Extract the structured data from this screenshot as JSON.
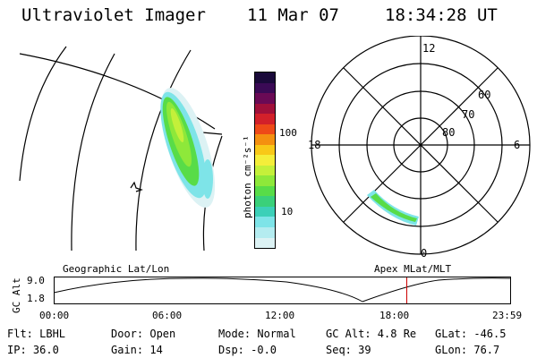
{
  "header": {
    "instrument": "Ultraviolet Imager",
    "date": "11 Mar 07",
    "time": "18:34:28 UT"
  },
  "colorbar": {
    "label": "photon cm⁻²s⁻¹",
    "scale": "log",
    "tick_labels": [
      "100",
      "10"
    ],
    "colors_top_to_bottom": [
      "#1a0a3a",
      "#3a0a55",
      "#6a0a55",
      "#a0103a",
      "#d2202a",
      "#ee4a18",
      "#f49010",
      "#f8c818",
      "#f4ee3a",
      "#c4f03a",
      "#8ee83a",
      "#58dc48",
      "#3ad07a",
      "#3cd0b8",
      "#7ee4e8",
      "#b4ecf0",
      "#dcf2f4"
    ]
  },
  "geo_panel": {
    "label": "Geographic Lat/Lon"
  },
  "polar_panel": {
    "label": "Apex MLat/MLT",
    "mlt_labels": [
      "12",
      "18",
      "6",
      "0"
    ],
    "mlat_labels": [
      "60",
      "70",
      "80"
    ]
  },
  "altitude_plot": {
    "ylabel": "GC Alt",
    "y_ticks": [
      "9.0",
      "1.8"
    ],
    "x_ticks": [
      "00:00",
      "06:00",
      "12:00",
      "18:00",
      "23:59"
    ],
    "marker_time": "18:34",
    "marker_color": "#cc0000"
  },
  "status": {
    "flt": "Flt: LBHL",
    "ip": "IP: 36.0",
    "door": "Door: Open",
    "gain": "Gain: 14",
    "mode": "Mode: Normal",
    "dsp": "Dsp:   -0.0",
    "gc_alt": "GC Alt: 4.8 Re",
    "seq": "Seq: 39",
    "glat": "GLat: -46.5",
    "glon": "GLon:  76.7"
  }
}
